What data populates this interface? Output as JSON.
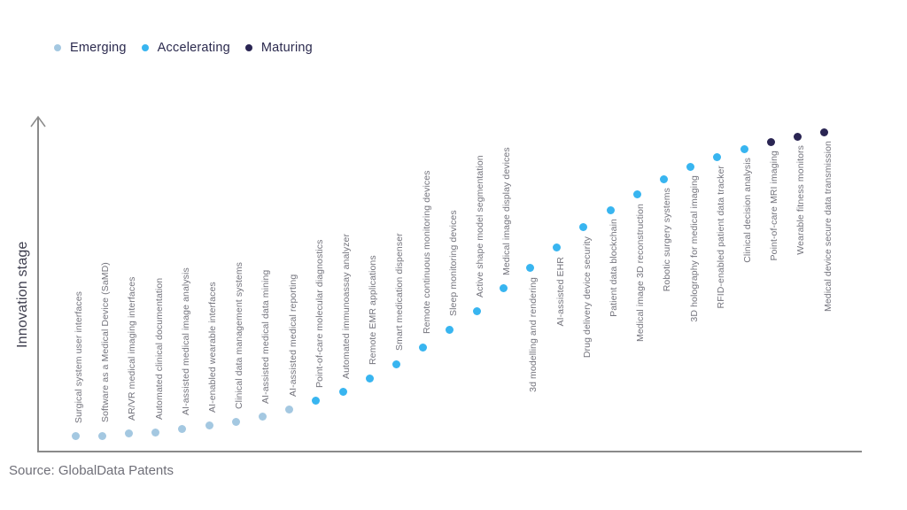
{
  "legend": {
    "items": [
      {
        "label": "Emerging",
        "color": "#a4c8e1"
      },
      {
        "label": "Accelerating",
        "color": "#38b5f0"
      },
      {
        "label": "Maturing",
        "color": "#2a2553"
      }
    ]
  },
  "source": "Source: GlobalData Patents",
  "chart_data": {
    "type": "scatter",
    "title": "",
    "xlabel": "",
    "ylabel": "Innovation stage",
    "y_axis_has_arrow": true,
    "y_range_note": "unlabeled qualitative axis, values normalized 0-100",
    "legend_position": "top-left",
    "grid": false,
    "stage_colors": {
      "Emerging": "#a4c8e1",
      "Accelerating": "#38b5f0",
      "Maturing": "#2a2553"
    },
    "items": [
      {
        "label": "Surgical system user interfaces",
        "stage": "Emerging",
        "value": 4.8
      },
      {
        "label": "Software as a Medical Device (SaMD)",
        "stage": "Emerging",
        "value": 5.0
      },
      {
        "label": "AR/VR medical imaging interfaces",
        "stage": "Emerging",
        "value": 5.6
      },
      {
        "label": "Automated clinical documentation",
        "stage": "Emerging",
        "value": 5.8
      },
      {
        "label": "AI-assisted medical image analysis",
        "stage": "Emerging",
        "value": 7.1
      },
      {
        "label": "AI-enabled wearable interfaces",
        "stage": "Emerging",
        "value": 7.9
      },
      {
        "label": "Clinical data management systems",
        "stage": "Emerging",
        "value": 9.0
      },
      {
        "label": "AI-assisted medical data mining",
        "stage": "Emerging",
        "value": 10.6
      },
      {
        "label": "AI-assisted medical reporting",
        "stage": "Emerging",
        "value": 12.7
      },
      {
        "label": "Point-of-care molecular diagnostics",
        "stage": "Accelerating",
        "value": 15.3
      },
      {
        "label": "Automated immunoassay analyzer",
        "stage": "Accelerating",
        "value": 18.0
      },
      {
        "label": "Remote EMR applications",
        "stage": "Accelerating",
        "value": 22.0
      },
      {
        "label": "Smart medication dispenser",
        "stage": "Accelerating",
        "value": 26.2
      },
      {
        "label": "Remote continuous monitoring devices",
        "stage": "Accelerating",
        "value": 31.2
      },
      {
        "label": "Sleep monitoring devices",
        "stage": "Accelerating",
        "value": 36.5
      },
      {
        "label": "Active shape model segmentation",
        "stage": "Accelerating",
        "value": 42.1
      },
      {
        "label": "Medical image display devices",
        "stage": "Accelerating",
        "value": 48.7
      },
      {
        "label": "3d modelling and rendering",
        "stage": "Accelerating",
        "value": 54.8
      },
      {
        "label": "AI-assisted EHR",
        "stage": "Accelerating",
        "value": 60.8
      },
      {
        "label": "Drug delivery device security",
        "stage": "Accelerating",
        "value": 66.9
      },
      {
        "label": "Patient data blockchain",
        "stage": "Accelerating",
        "value": 72.0
      },
      {
        "label": "Medical image 3D reconstruction",
        "stage": "Accelerating",
        "value": 76.7
      },
      {
        "label": "Robotic surgery systems",
        "stage": "Accelerating",
        "value": 81.2
      },
      {
        "label": "3D holography for medical imaging",
        "stage": "Accelerating",
        "value": 84.9
      },
      {
        "label": "RFID-enabled patient data tracker",
        "stage": "Accelerating",
        "value": 87.8
      },
      {
        "label": "Clinical decision analysis",
        "stage": "Accelerating",
        "value": 90.2
      },
      {
        "label": "Point-of-care MRI imaging",
        "stage": "Maturing",
        "value": 92.3
      },
      {
        "label": "Wearable fitness monitors",
        "stage": "Maturing",
        "value": 93.9
      },
      {
        "label": "Medical device secure data transmission",
        "stage": "Maturing",
        "value": 95.2
      }
    ]
  }
}
